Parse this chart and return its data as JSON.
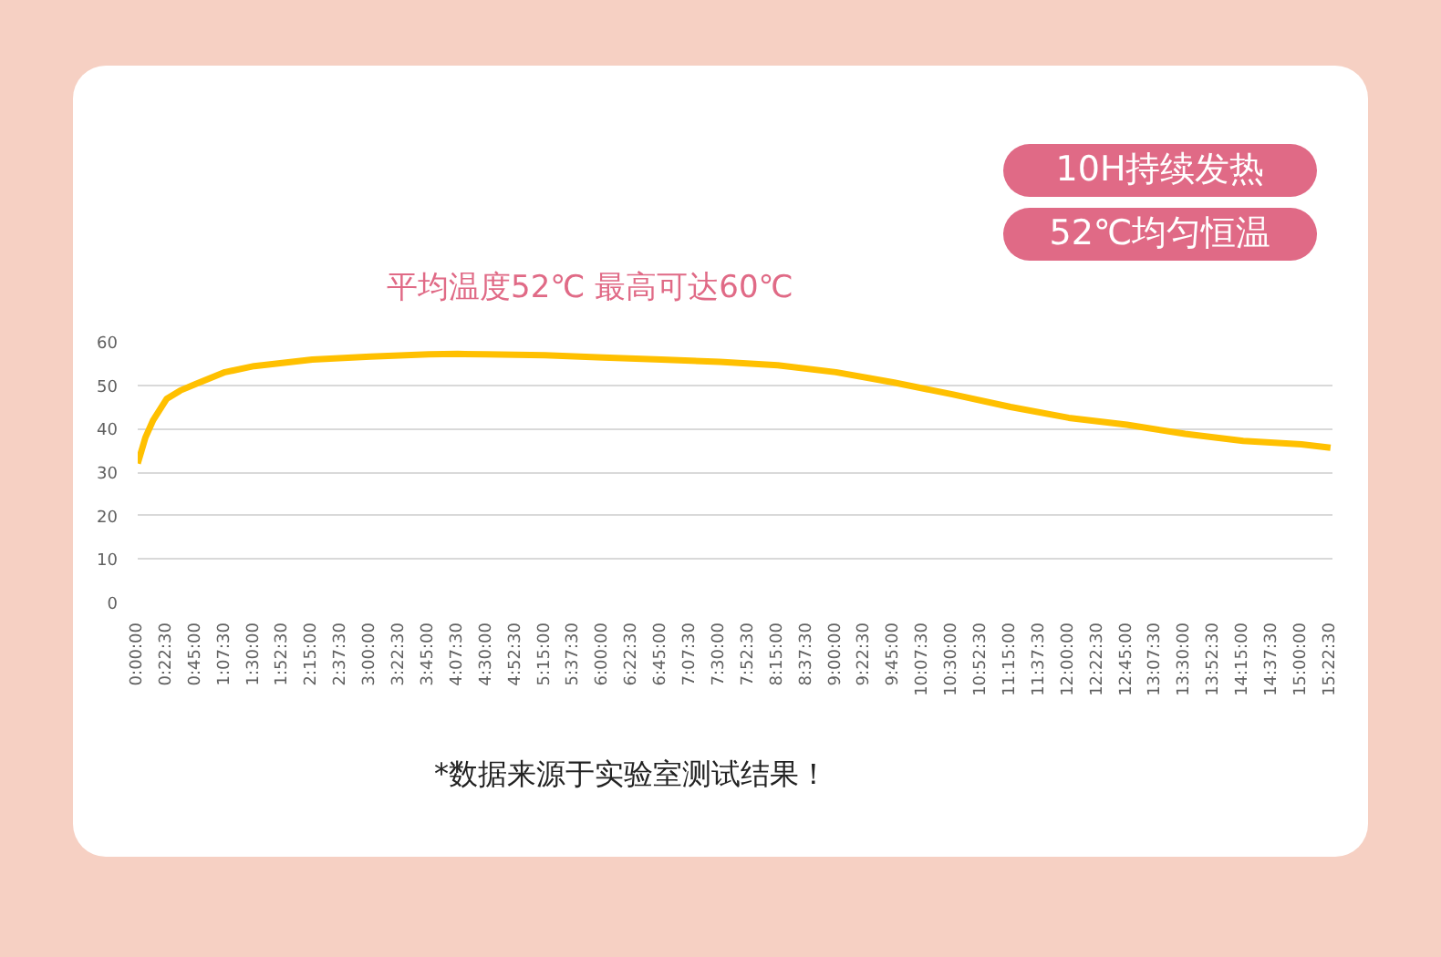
{
  "chart_data": {
    "type": "line",
    "title": "平均温度52℃ 最高可达60℃",
    "annotations": [
      "10H持续发热",
      "52℃均匀恒温",
      "*数据来源于实验室测试结果！"
    ],
    "x": [
      0,
      0.05,
      0.1,
      0.2,
      0.375,
      0.55,
      0.75,
      1.125,
      1.5,
      2.25,
      3,
      3.75,
      4.125,
      4.5,
      5.25,
      6,
      6.75,
      7.5,
      8.25,
      9,
      9.75,
      10.5,
      11.25,
      12,
      12.75,
      13.5,
      14.25,
      15,
      15.375
    ],
    "series": [
      {
        "color": "#ffc000",
        "values": [
          32,
          35,
          38,
          42,
          46.9,
          48.8,
          50.3,
          53,
          54.4,
          55.9,
          56.6,
          57.1,
          57.2,
          57.1,
          56.9,
          56.4,
          55.9,
          55.4,
          54.6,
          53,
          50.6,
          47.9,
          45,
          42.5,
          40.9,
          38.8,
          37.2,
          36.4,
          35.6
        ]
      }
    ],
    "xlim": [
      0,
      15.4
    ],
    "ylim": [
      0,
      60
    ],
    "yticks": [
      0,
      10,
      20,
      30,
      40,
      50,
      60
    ],
    "xticks": [
      {
        "value": 0,
        "label": "0:00:00"
      },
      {
        "value": 0.375,
        "label": "0:22:30"
      },
      {
        "value": 0.75,
        "label": "0:45:00"
      },
      {
        "value": 1.125,
        "label": "1:07:30"
      },
      {
        "value": 1.5,
        "label": "1:30:00"
      },
      {
        "value": 1.875,
        "label": "1:52:30"
      },
      {
        "value": 2.25,
        "label": "2:15:00"
      },
      {
        "value": 2.625,
        "label": "2:37:30"
      },
      {
        "value": 3,
        "label": "3:00:00"
      },
      {
        "value": 3.375,
        "label": "3:22:30"
      },
      {
        "value": 3.75,
        "label": "3:45:00"
      },
      {
        "value": 4.125,
        "label": "4:07:30"
      },
      {
        "value": 4.5,
        "label": "4:30:00"
      },
      {
        "value": 4.875,
        "label": "4:52:30"
      },
      {
        "value": 5.25,
        "label": "5:15:00"
      },
      {
        "value": 5.625,
        "label": "5:37:30"
      },
      {
        "value": 6,
        "label": "6:00:00"
      },
      {
        "value": 6.375,
        "label": "6:22:30"
      },
      {
        "value": 6.75,
        "label": "6:45:00"
      },
      {
        "value": 7.125,
        "label": "7:07:30"
      },
      {
        "value": 7.5,
        "label": "7:30:00"
      },
      {
        "value": 7.875,
        "label": "7:52:30"
      },
      {
        "value": 8.25,
        "label": "8:15:00"
      },
      {
        "value": 8.625,
        "label": "8:37:30"
      },
      {
        "value": 9,
        "label": "9:00:00"
      },
      {
        "value": 9.375,
        "label": "9:22:30"
      },
      {
        "value": 9.75,
        "label": "9:45:00"
      },
      {
        "value": 10.125,
        "label": "10:07:30"
      },
      {
        "value": 10.5,
        "label": "10:30:00"
      },
      {
        "value": 10.875,
        "label": "10:52:30"
      },
      {
        "value": 11.25,
        "label": "11:15:00"
      },
      {
        "value": 11.625,
        "label": "11:37:30"
      },
      {
        "value": 12,
        "label": "12:00:00"
      },
      {
        "value": 12.375,
        "label": "12:22:30"
      },
      {
        "value": 12.75,
        "label": "12:45:00"
      },
      {
        "value": 13.125,
        "label": "13:07:30"
      },
      {
        "value": 13.5,
        "label": "13:30:00"
      },
      {
        "value": 13.875,
        "label": "13:52:30"
      },
      {
        "value": 14.25,
        "label": "14:15:00"
      },
      {
        "value": 14.625,
        "label": "14:37:30"
      },
      {
        "value": 15,
        "label": "15:00:00"
      },
      {
        "value": 15.375,
        "label": "15:22:30"
      }
    ],
    "grid": "y",
    "marker": "none",
    "line_style": "solid"
  }
}
